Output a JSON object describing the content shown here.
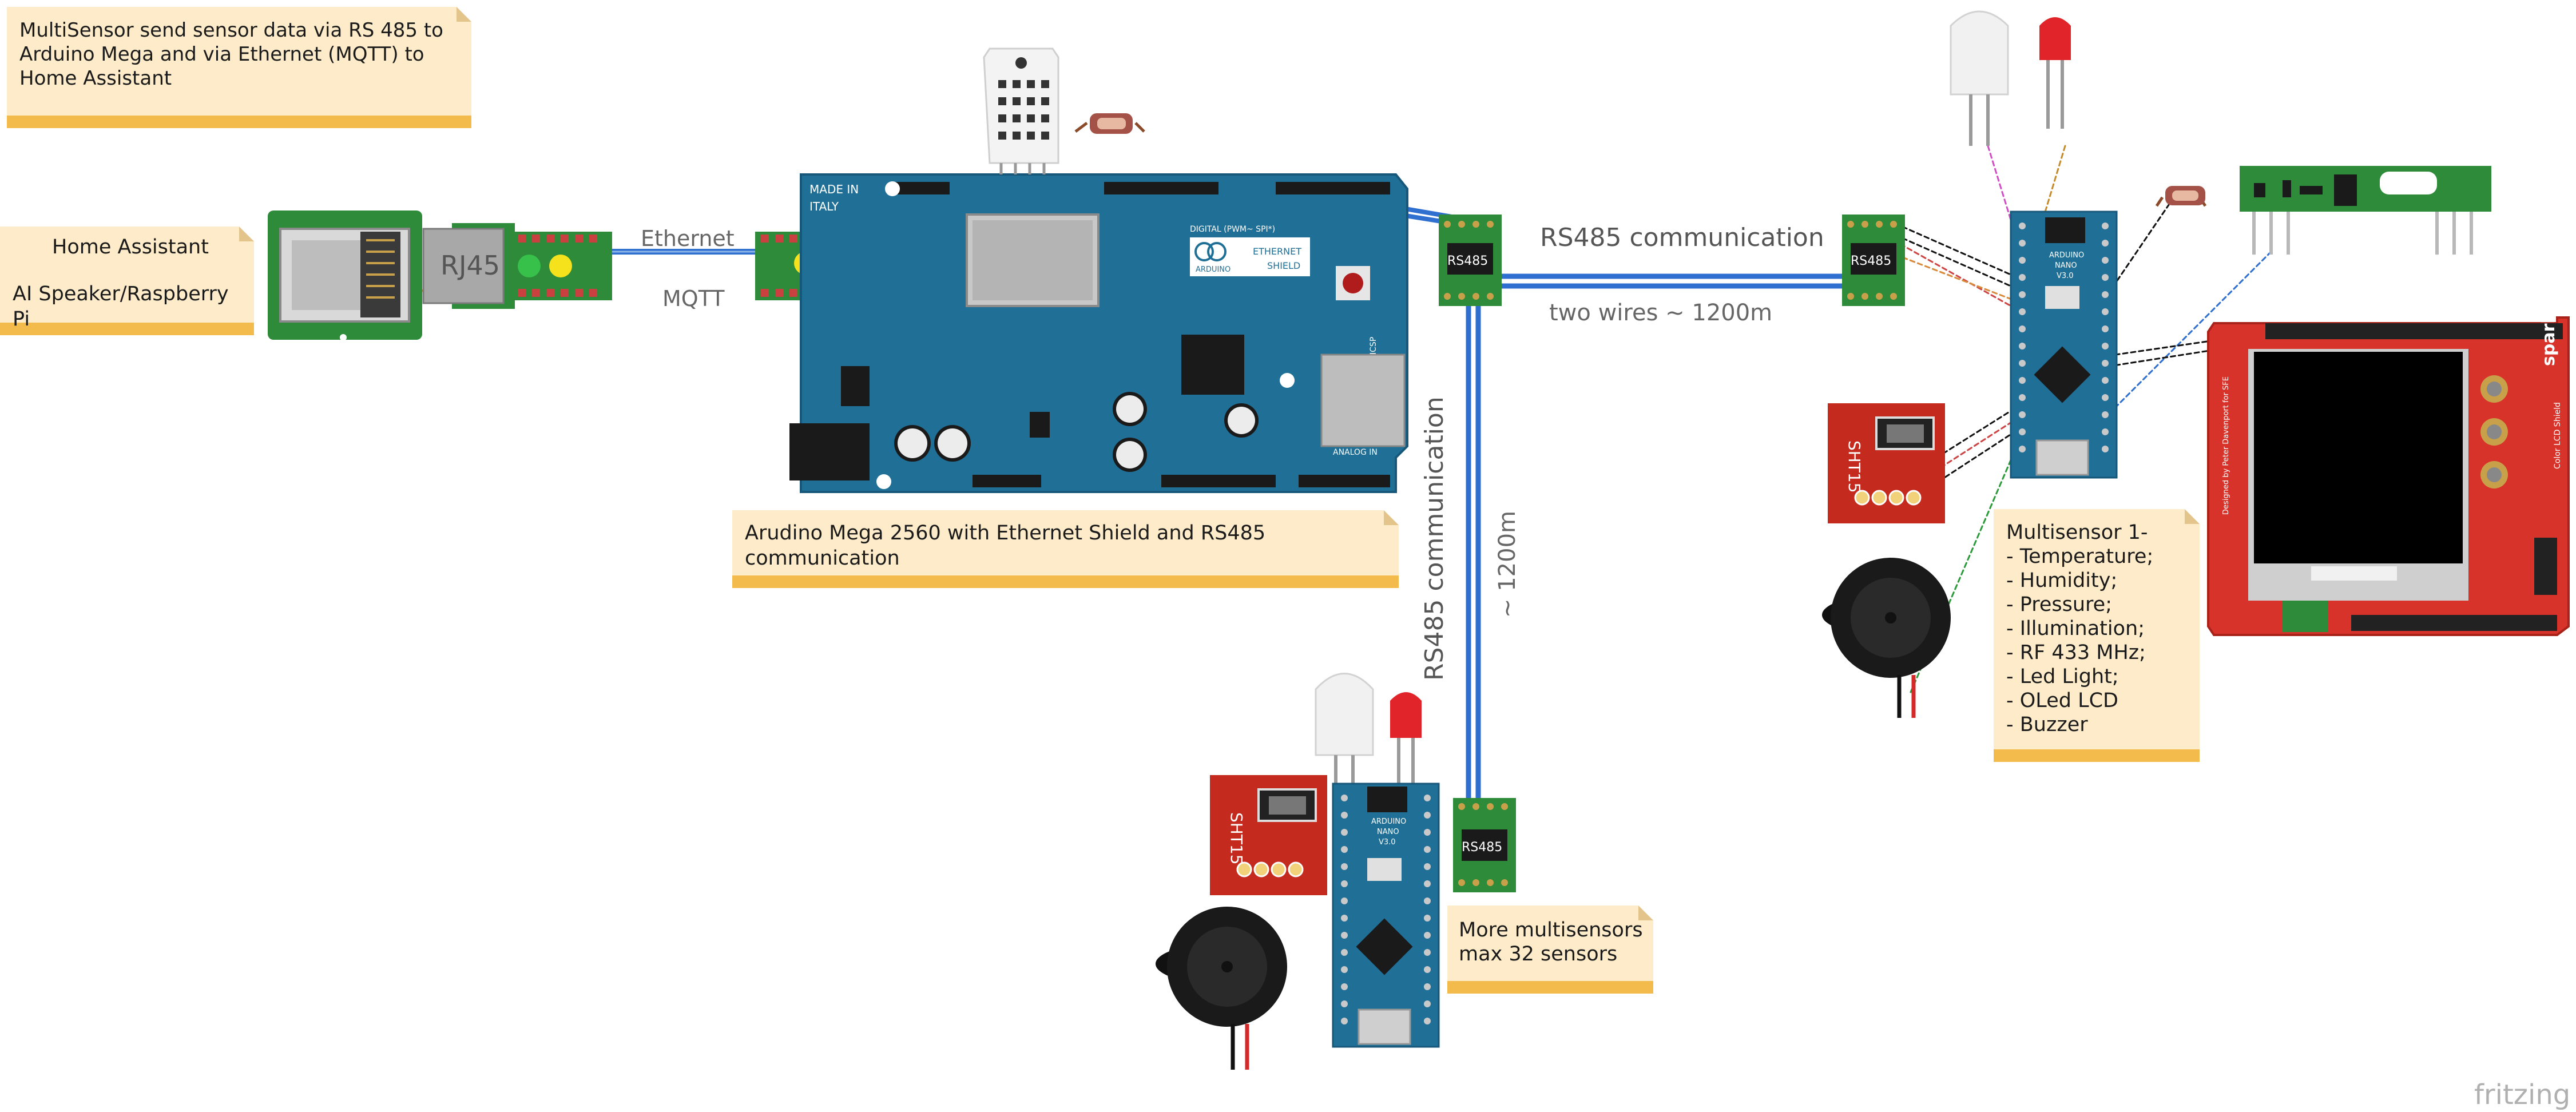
{
  "notes": {
    "intro": "MultiSensor send sensor data via RS 485 to Arduino Mega and via Ethernet (MQTT) to Home Assistant",
    "home_assistant_title": "Home Assistant",
    "home_assistant_sub": "AI Speaker/Raspberry Pi",
    "mega": "Arudino Mega 2560 with Ethernet Shield and RS485 communication",
    "more": [
      "More multisensors",
      "max 32 sensors"
    ],
    "multisensor_items": [
      "Multisensor 1-",
      "- Temperature;",
      "- Humidity;",
      "- Pressure;",
      "- Illumination;",
      "- RF 433 MHz;",
      "- Led Light;",
      "- OLed LCD",
      "- Buzzer"
    ]
  },
  "labels": {
    "ethernet": "Ethernet",
    "mqtt": "MQTT",
    "rs485_comm": "RS485 communication",
    "two_wires": "two wires ~ 1200m",
    "rs485_vertical": "RS485 communication",
    "distance_vertical": "~ 1200m"
  },
  "parts": {
    "rj45": "RJ45",
    "rs485": "RS485",
    "sht15": "SHT15",
    "made_in": [
      "MADE IN",
      "ITALY"
    ],
    "arduino": "ARDUINO",
    "ethernet_shield": [
      "ETHERNET",
      "SHIELD"
    ],
    "digital": "DIGITAL (PWM~ SPI*)",
    "analog_in": "ANALOG IN",
    "icsp": "ICSP",
    "nano": [
      "ARDUINO",
      "NANO",
      "V3.0"
    ],
    "sparkfun": "sparkfun.com",
    "sparkfun_sub": "Color LCD Shield",
    "sparkfun_design": "Designed by Peter Davenport for SFE"
  },
  "brand": "fritzing",
  "colors": {
    "note_bg": "#fdebc9",
    "note_bar": "#f2bb4c",
    "pcb_blue": "#1f6f96",
    "pcb_green": "#2e8b3a",
    "sensor_red": "#c42a1e",
    "wire_blue": "#2f6fd0",
    "label_gray": "#666666"
  }
}
